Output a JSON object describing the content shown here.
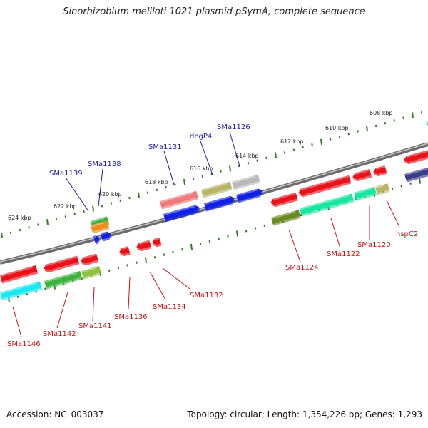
{
  "title": "Sinorhizobium meliloti 1021 plasmid pSymA, complete sequence",
  "footer": {
    "accession": "Accession: NC_003037",
    "stats": "Topology: circular; Length: 1,354,226 bp; Genes: 1,293"
  },
  "ticks": [
    "608 kbp",
    "610 kbp",
    "612 kbp",
    "614 kbp",
    "616 kbp",
    "618 kbp",
    "620 kbp",
    "622 kbp",
    "624 kbp"
  ],
  "labels_top": [
    "SMa1126",
    "degP4",
    "SMa1131",
    "SMa1138",
    "SMa1139"
  ],
  "labels_bottom": [
    "hspC2",
    "SMa1120",
    "SMa1122",
    "SMa1124",
    "SMa1132",
    "SMa1134",
    "SMa1136",
    "SMa1141",
    "SMa1142",
    "SMa1146"
  ],
  "colors": {
    "backbone": "#8a8a8a",
    "tick": "#2e7d1e",
    "label_top": "#1a1aaa",
    "label_bottom": "#cc1111",
    "red": "#e8121a",
    "blue": "#1020e8",
    "green": "#3db33d",
    "teal": "#18e6a0",
    "cyan": "#19e8f0",
    "olive": "#b8b466",
    "gray": "#b8b8b8",
    "salmon": "#ef7878",
    "navy": "#3c3c88",
    "darkolive": "#6c8a22",
    "orange": "#f08c1a",
    "lightgreen": "#8ec23c"
  }
}
